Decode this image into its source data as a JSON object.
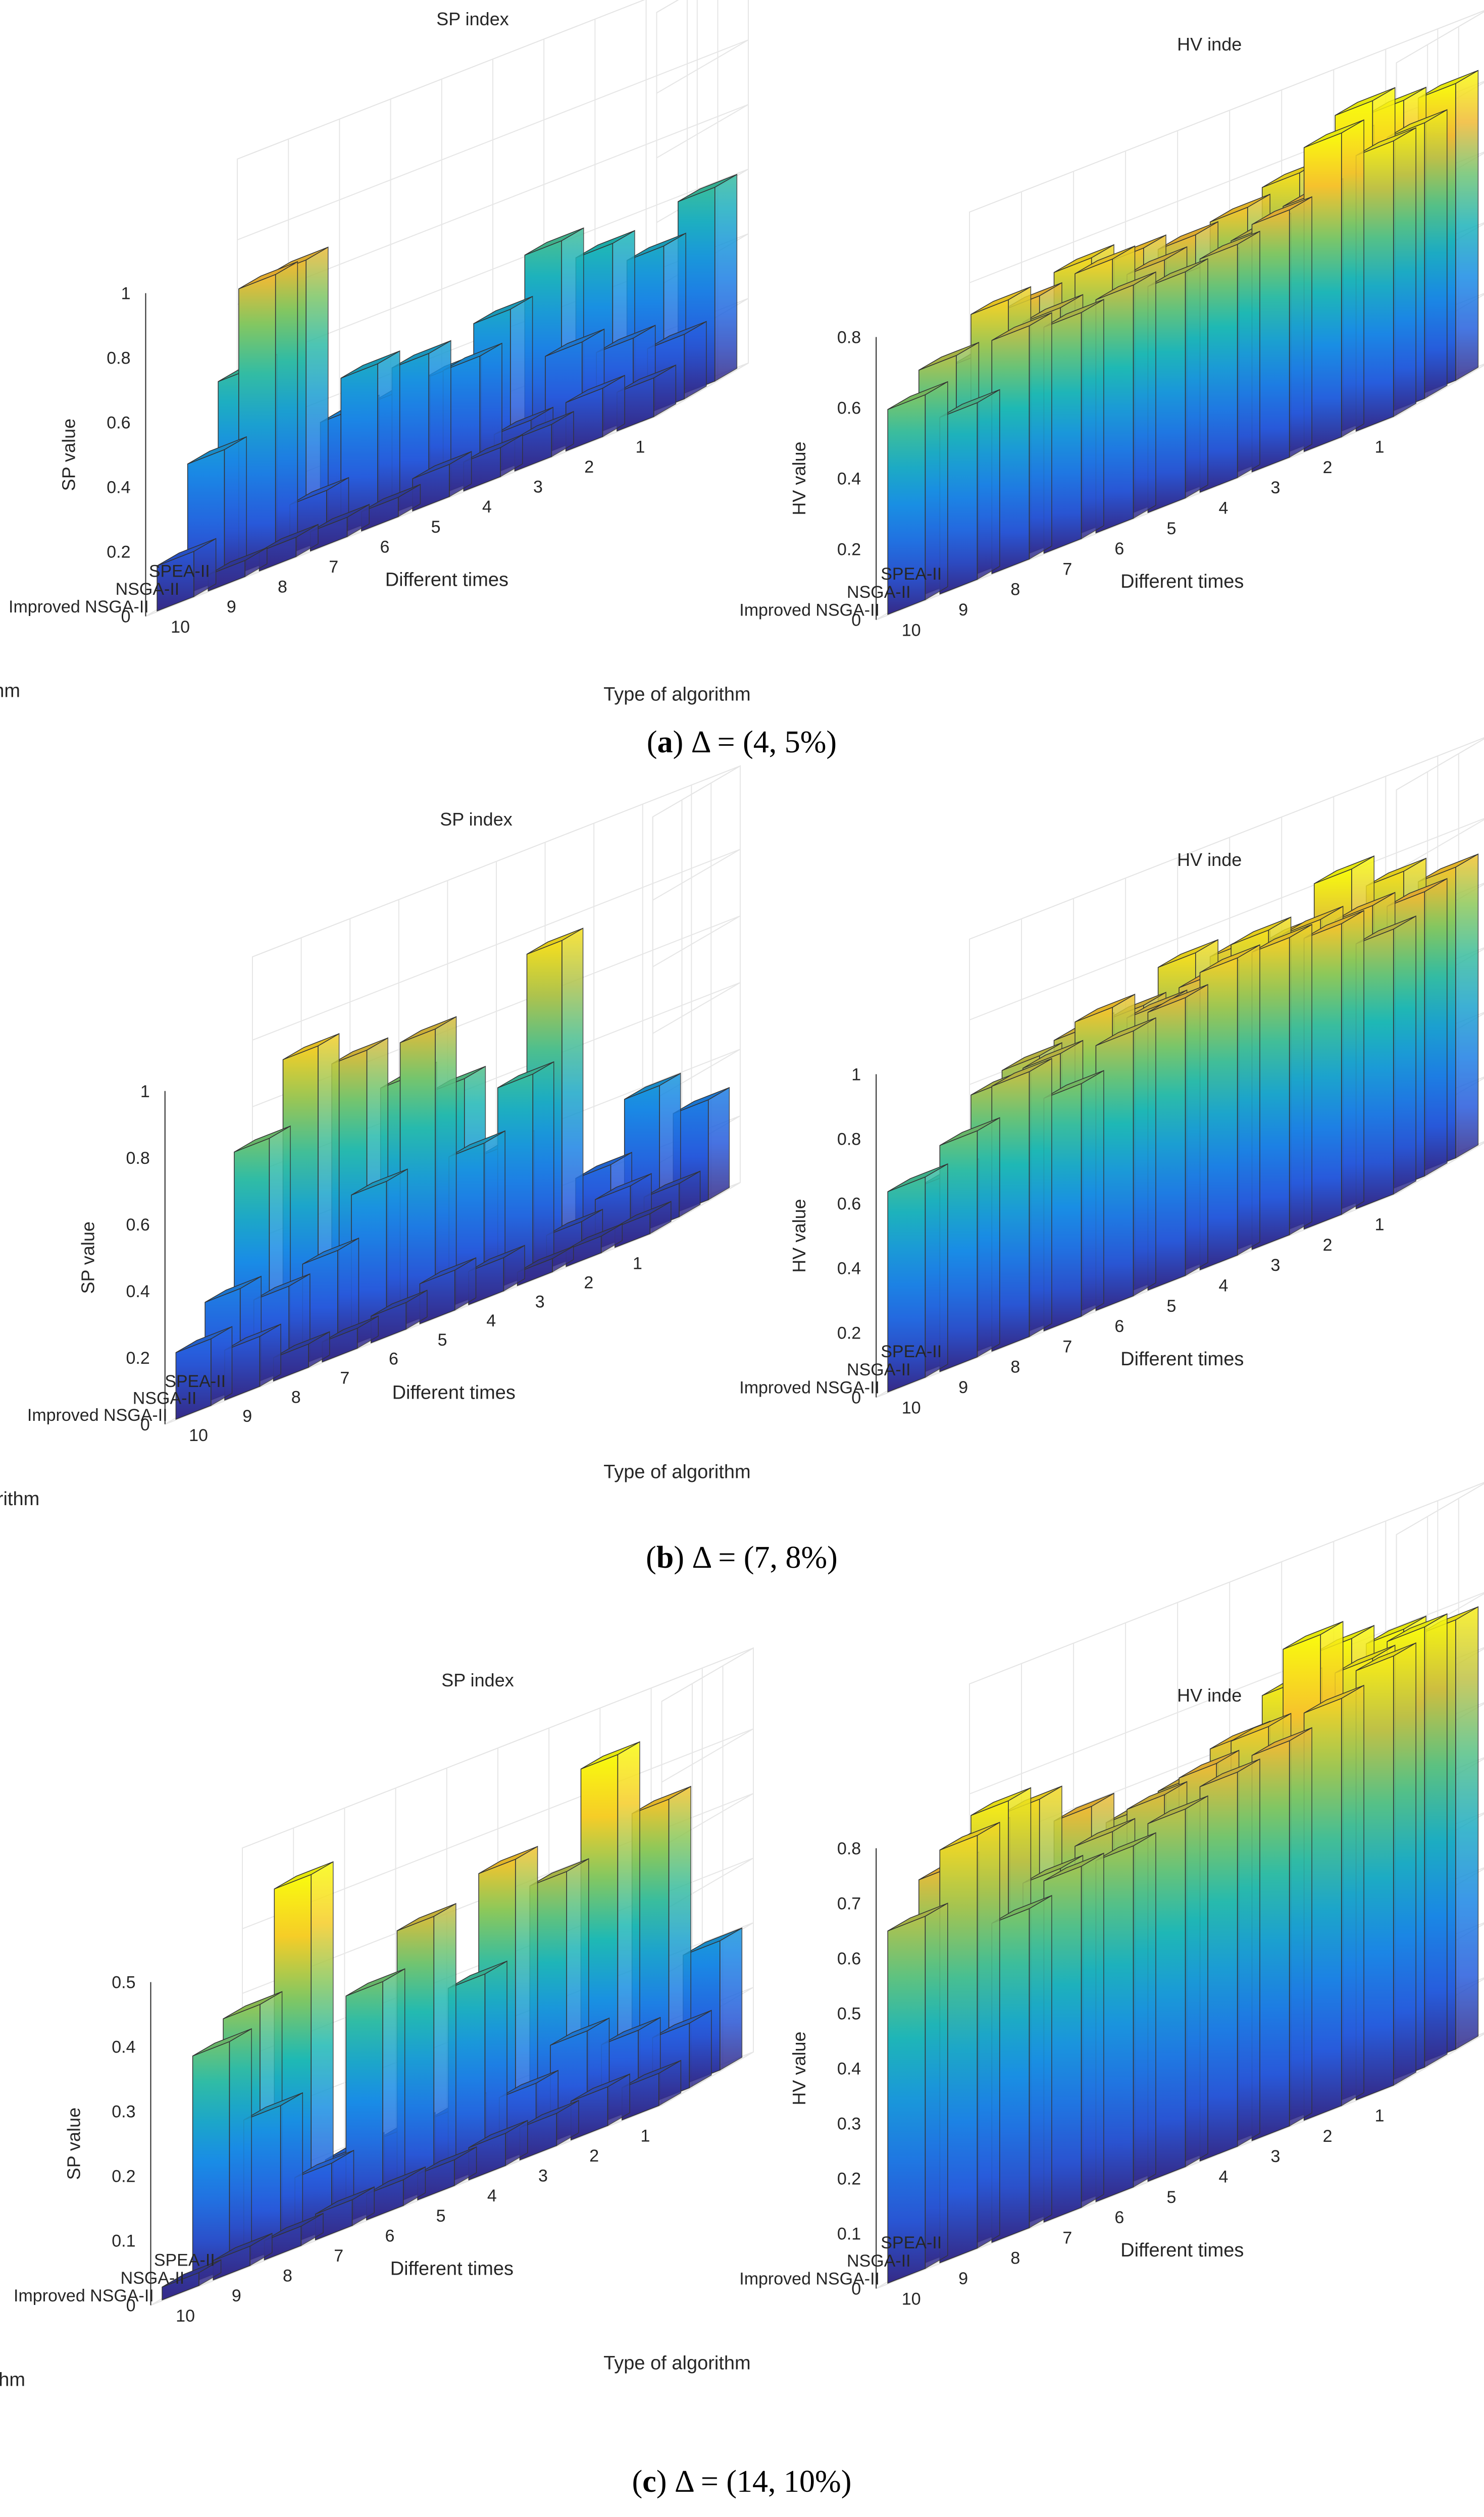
{
  "figure": {
    "panels": [
      {
        "caption": "(a) Δ = (4, 5%)",
        "caption_letter": "a",
        "caption_rest": "Δ = (4, 5%)",
        "charts": [
          {
            "type": "bar3d",
            "title": "SP index",
            "zlabel": "SP value",
            "xlabel": "Different times",
            "ylabel": "Type of algorithm",
            "algorithms": [
              "SPEA-II",
              "NSGA-II",
              "Improved NSGA-II"
            ],
            "times": [
              "1",
              "2",
              "3",
              "4",
              "5",
              "6",
              "7",
              "8",
              "9",
              "10"
            ],
            "zlim": [
              0,
              1
            ],
            "zticks": [
              "0",
              "0.2",
              "0.4",
              "0.6",
              "0.8",
              "1"
            ],
            "grid": true,
            "values": {
              "SPEA-II": [
                0.6,
                0.48,
                0.55,
                0.62,
                0.47,
                0.36,
                0.35,
                0.35,
                0.87,
                0.6
              ],
              "NSGA-II": [
                0.2,
                0.25,
                0.3,
                0.12,
                0.38,
                0.45,
                0.48,
                0.15,
                0.88,
                0.4
              ],
              "Improved NSGA-II": [
                0.12,
                0.15,
                0.1,
                0.09,
                0.1,
                0.06,
                0.06,
                0.06,
                0.05,
                0.14
              ]
            }
          },
          {
            "type": "bar3d",
            "title": "HV inde",
            "zlabel": "HV value",
            "xlabel": "Different times",
            "ylabel": "Type of algorithm",
            "algorithms": [
              "SPEA-II",
              "NSGA-II",
              "Improved NSGA-II"
            ],
            "times": [
              "1",
              "2",
              "3",
              "4",
              "5",
              "6",
              "7",
              "8",
              "9",
              "10"
            ],
            "zlim": [
              0,
              0.8
            ],
            "zticks": [
              "0",
              "0.2",
              "0.4",
              "0.6",
              "0.8"
            ],
            "grid": true,
            "values": {
              "SPEA-II": [
                0.84,
                0.85,
                0.8,
                0.76,
                0.72,
                0.7,
                0.72,
                0.75,
                0.7,
                0.6
              ],
              "NSGA-II": [
                0.78,
                0.9,
                0.7,
                0.66,
                0.62,
                0.68,
                0.74,
                0.66,
                0.74,
                0.64
              ],
              "Improved NSGA-II": [
                0.78,
                0.86,
                0.7,
                0.66,
                0.64,
                0.66,
                0.64,
                0.66,
                0.5,
                0.58
              ]
            }
          }
        ]
      },
      {
        "caption": "(b) Δ = (7, 8%)",
        "caption_letter": "b",
        "caption_rest": "Δ = (7, 8%)",
        "charts": [
          {
            "type": "bar3d",
            "title": "SP index",
            "zlabel": "SP value",
            "xlabel": "Different times",
            "ylabel": "Type of algorithm",
            "algorithms": [
              "SPEA-II",
              "NSGA-II",
              "Improved NSGA-II"
            ],
            "times": [
              "1",
              "2",
              "3",
              "4",
              "5",
              "6",
              "7",
              "8",
              "9",
              "10"
            ],
            "zlim": [
              0,
              1
            ],
            "zticks": [
              "0",
              "0.2",
              "0.4",
              "0.6",
              "0.8",
              "1"
            ],
            "grid": true,
            "values": {
              "SPEA-II": [
                0.3,
                0.4,
                0.22,
                0.95,
                0.4,
                0.65,
                0.72,
                0.85,
                0.92,
                0.7
              ],
              "NSGA-II": [
                0.1,
                0.15,
                0.1,
                0.6,
                0.45,
                0.85,
                0.45,
                0.3,
                0.25,
                0.3
              ],
              "Improved NSGA-II": [
                0.06,
                0.05,
                0.04,
                0.1,
                0.12,
                0.08,
                0.06,
                0.07,
                0.15,
                0.2
              ]
            }
          },
          {
            "type": "bar3d",
            "title": "HV inde",
            "zlabel": "HV value",
            "xlabel": "Different times",
            "ylabel": "Type of algorithm",
            "algorithms": [
              "SPEA-II",
              "NSGA-II",
              "Improved NSGA-II"
            ],
            "times": [
              "1",
              "2",
              "3",
              "4",
              "5",
              "6",
              "7",
              "8",
              "9",
              "10"
            ],
            "zlim": [
              0,
              1
            ],
            "zticks": [
              "0",
              "0.2",
              "0.4",
              "0.6",
              "0.8",
              "1"
            ],
            "grid": true,
            "values": {
              "SPEA-II": [
                0.9,
                0.95,
                1.02,
                0.9,
                0.92,
                0.95,
                0.85,
                0.85,
                0.82,
                0.55
              ],
              "NSGA-II": [
                0.88,
                0.9,
                0.92,
                0.95,
                0.88,
                0.85,
                0.9,
                0.82,
                0.8,
                0.58
              ],
              "Improved NSGA-II": [
                0.82,
                0.9,
                0.92,
                0.92,
                0.86,
                0.82,
                0.72,
                0.82,
                0.7,
                0.62
              ]
            }
          }
        ]
      },
      {
        "caption": "(c) Δ = (14, 10%)",
        "caption_letter": "c",
        "caption_rest": "Δ = (14, 10%)",
        "charts": [
          {
            "type": "bar3d",
            "title": "SP index",
            "zlabel": "SP value",
            "xlabel": "Different times",
            "ylabel": "Type of algorithm",
            "algorithms": [
              "SPEA-II",
              "NSGA-II",
              "Improved NSGA-II"
            ],
            "times": [
              "1",
              "2",
              "3",
              "4",
              "5",
              "6",
              "7",
              "8",
              "9",
              "10"
            ],
            "zlim": [
              0,
              0.5
            ],
            "zticks": [
              "0",
              "0.1",
              "0.2",
              "0.3",
              "0.4",
              "0.5"
            ],
            "grid": true,
            "values": {
              "SPEA-II": [
                0.2,
                0.45,
                0.55,
                0.4,
                0.45,
                0.1,
                0.1,
                0.1,
                0.55,
                0.38
              ],
              "NSGA-II": [
                0.1,
                0.12,
                0.15,
                0.1,
                0.3,
                0.42,
                0.35,
                0.1,
                0.22,
                0.35
              ],
              "Improved NSGA-II": [
                0.05,
                0.06,
                0.05,
                0.05,
                0.04,
                0.04,
                0.04,
                0.03,
                0.03,
                0.02
              ]
            }
          },
          {
            "type": "bar3d",
            "title": "HV inde",
            "zlabel": "HV value",
            "xlabel": "Different times",
            "ylabel": "Type of algorithm",
            "algorithms": [
              "SPEA-II",
              "NSGA-II",
              "Improved NSGA-II"
            ],
            "times": [
              "1",
              "2",
              "3",
              "4",
              "5",
              "6",
              "7",
              "8",
              "9",
              "10"
            ],
            "zlim": [
              0,
              0.8
            ],
            "zticks": [
              "0",
              "0.1",
              "0.2",
              "0.3",
              "0.4",
              "0.5",
              "0.6",
              "0.7",
              "0.8"
            ],
            "grid": true,
            "values": {
              "SPEA-II": [
                0.78,
                0.8,
                0.82,
                0.78,
                0.72,
                0.68,
                0.66,
                0.7,
                0.75,
                0.73
              ],
              "NSGA-II": [
                0.8,
                0.78,
                0.86,
                0.73,
                0.7,
                0.68,
                0.65,
                0.62,
                0.78,
                0.7
              ],
              "Improved NSGA-II": [
                0.78,
                0.74,
                0.7,
                0.68,
                0.65,
                0.62,
                0.62,
                0.58,
                0.75,
                0.64
              ]
            }
          }
        ]
      }
    ]
  }
}
